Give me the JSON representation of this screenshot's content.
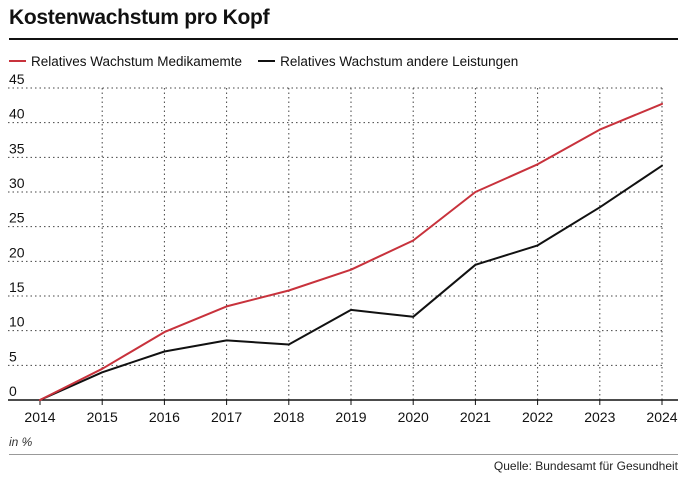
{
  "title": "Kostenwachstum pro Kopf",
  "unit_note": "in %",
  "source": "Quelle: Bundesamt für Gesundheit",
  "colors": {
    "medikamente": "#c8323c",
    "andere": "#111111",
    "grid": "#444444",
    "axis": "#111111"
  },
  "chart_data": {
    "type": "line",
    "title": "Kostenwachstum pro Kopf",
    "x": [
      "2014",
      "2015",
      "2016",
      "2017",
      "2018",
      "2019",
      "2020",
      "2021",
      "2022",
      "2023",
      "2024"
    ],
    "ylim": [
      0,
      45
    ],
    "yticks": [
      0,
      5,
      10,
      15,
      20,
      25,
      30,
      35,
      40,
      45
    ],
    "grid": "dotted",
    "legend_position": "top-left",
    "series": [
      {
        "name": "Relatives Wachstum Medikamemte",
        "color": "#c8323c",
        "values": [
          0,
          4.5,
          9.8,
          13.5,
          15.8,
          18.8,
          23,
          30,
          34,
          39,
          42.7
        ]
      },
      {
        "name": "Relatives Wachstum andere Leistungen",
        "color": "#111111",
        "values": [
          0,
          4,
          7,
          8.6,
          8,
          13,
          12,
          19.5,
          22.3,
          27.8,
          33.8
        ]
      }
    ]
  }
}
